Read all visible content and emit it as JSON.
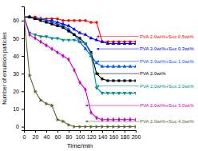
{
  "chart_data": {
    "type": "line",
    "xlabel": "Time/min",
    "ylabel": "Number of emulsion particles",
    "xlim": [
      0,
      200
    ],
    "ylim": [
      -2,
      68
    ],
    "xticks": [
      0,
      20,
      40,
      60,
      80,
      100,
      120,
      140,
      160,
      180,
      200
    ],
    "yticks": [
      0,
      10,
      20,
      30,
      40,
      50,
      60
    ],
    "x": [
      0,
      10,
      20,
      30,
      40,
      50,
      60,
      70,
      80,
      90,
      100,
      110,
      120,
      130,
      140,
      150,
      160,
      170,
      180,
      190,
      200
    ],
    "series": [
      {
        "color": "#ff0000",
        "marker": "circle",
        "values": [
          62,
          62,
          62,
          61,
          61,
          61,
          61,
          60,
          60,
          60,
          60,
          60,
          59,
          59,
          48,
          48,
          48,
          48,
          48,
          48,
          48
        ]
      },
      {
        "color": "#0000ff",
        "marker": "triangle-up",
        "values": [
          62,
          62,
          61,
          61,
          60,
          60,
          59,
          58,
          57,
          55,
          53,
          52,
          50,
          49,
          48,
          47,
          47,
          47,
          47,
          47,
          47
        ]
      },
      {
        "color": "#0055ff",
        "marker": "triangle-up",
        "values": [
          62,
          62,
          61,
          61,
          60,
          59,
          58,
          57,
          55,
          52,
          48,
          44,
          40,
          36,
          34,
          34,
          34,
          34,
          34,
          34,
          34
        ]
      },
      {
        "color": "#000000",
        "marker": "square",
        "values": [
          62,
          62,
          61,
          60,
          59,
          58,
          57,
          56,
          54,
          52,
          50,
          47,
          42,
          30,
          27,
          26,
          26,
          26,
          26,
          26,
          26
        ]
      },
      {
        "color": "#009090",
        "marker": "triangle-down",
        "values": [
          62,
          53,
          52,
          51,
          51,
          50,
          50,
          49,
          49,
          49,
          48,
          47,
          41,
          22,
          19,
          19,
          19,
          19,
          19,
          19,
          19
        ]
      },
      {
        "color": "#cc00cc",
        "marker": "diamond",
        "values": [
          62,
          52,
          50,
          48,
          46,
          44,
          42,
          40,
          38,
          32,
          25,
          21,
          8,
          5,
          4,
          4,
          4,
          4,
          4,
          4,
          4
        ]
      },
      {
        "color": "#556b2f",
        "marker": "triangle-right",
        "values": [
          62,
          29,
          20,
          15,
          13,
          12,
          4,
          3,
          1,
          0,
          0,
          0,
          0,
          0,
          0,
          0,
          0,
          0,
          0,
          0,
          0
        ]
      }
    ],
    "annotations": [
      {
        "text": "PVA 2.0wt%+Suc 0.5wt%",
        "x": 130,
        "y": 51,
        "color": "#ff0000"
      },
      {
        "text": "PVA 2.0wt%+Suc 0.3wt%",
        "x": 130,
        "y": 44,
        "color": "#0000ff"
      },
      {
        "text": "PVA 2.0wt%+Suc 1.0wt%",
        "x": 130,
        "y": 37,
        "color": "#0055ff"
      },
      {
        "text": "PVA 2.0wt%",
        "x": 130,
        "y": 30,
        "color": "#000000"
      },
      {
        "text": "PVA 2.0wt%+Suc 2.0wt%",
        "x": 130,
        "y": 23,
        "color": "#009090"
      },
      {
        "text": "PVA 2.0wt%+Suc 3.0wt%",
        "x": 110,
        "y": 12,
        "color": "#cc00cc"
      },
      {
        "text": "PVA 2.0wt%+Suc 4.0wt%",
        "x": 110,
        "y": 3,
        "color": "#556b2f"
      }
    ]
  }
}
